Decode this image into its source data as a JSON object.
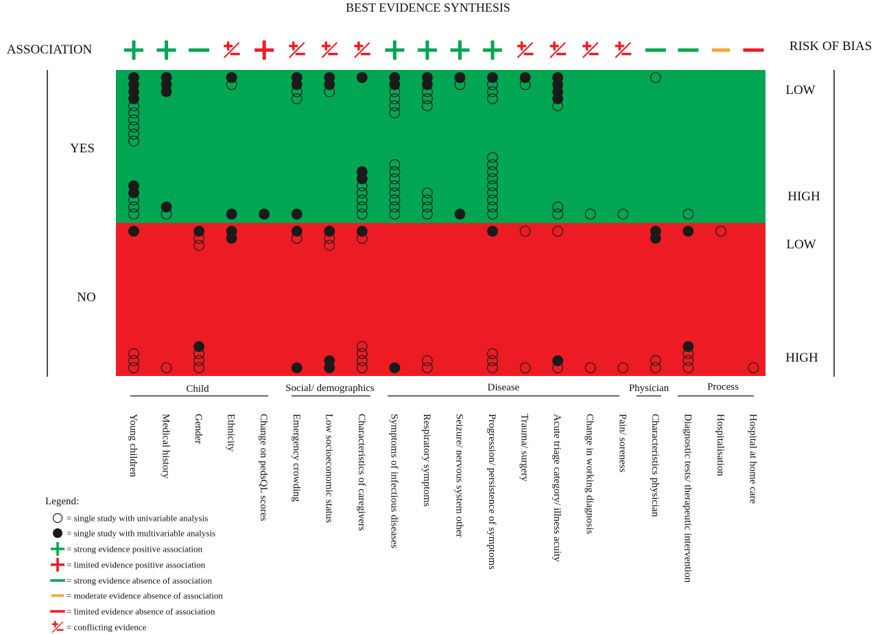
{
  "colors": {
    "green": "#00a651",
    "red": "#ed1c24",
    "orange": "#f7a535",
    "dot": "#1a1a1a"
  },
  "chart_data": {
    "type": "scatter",
    "title": "BEST EVIDENCE SYNTHESIS",
    "left_header": "ASSOCIATION",
    "right_header": "RISK OF BIAS",
    "association_labels": [
      "YES",
      "NO"
    ],
    "risk_labels": [
      "LOW",
      "HIGH",
      "LOW",
      "HIGH"
    ],
    "groups": [
      {
        "name": "Child",
        "from": 0,
        "to": 4
      },
      {
        "name": "Social/ demographics",
        "from": 5,
        "to": 7
      },
      {
        "name": "Disease",
        "from": 8,
        "to": 15
      },
      {
        "name": "Physician",
        "from": 16,
        "to": 16
      },
      {
        "name": "Process",
        "from": 17,
        "to": 19
      }
    ],
    "factors": [
      {
        "name": "Young children",
        "symbol": "strong-positive",
        "yes_low": "FFFFOOOOOO",
        "yes_high": "FFOOO",
        "no_low": "F",
        "no_high": "OOO"
      },
      {
        "name": "Medical history",
        "symbol": "strong-positive",
        "yes_low": "FFF",
        "yes_high": "FO",
        "no_low": "",
        "no_high": "O"
      },
      {
        "name": "Gender",
        "symbol": "strong-absence",
        "yes_low": "",
        "yes_high": "",
        "no_low": "FOO",
        "no_high": "FOOO"
      },
      {
        "name": "Ethnicity",
        "symbol": "conflicting",
        "yes_low": "FO",
        "yes_high": "F",
        "no_low": "FF",
        "no_high": ""
      },
      {
        "name": "Change on pedsQL scores",
        "symbol": "limited-positive",
        "yes_low": "",
        "yes_high": "F",
        "no_low": "",
        "no_high": ""
      },
      {
        "name": "Emergency crowding",
        "symbol": "conflicting",
        "yes_low": "FFOO",
        "yes_high": "F",
        "no_low": "FO",
        "no_high": "F"
      },
      {
        "name": "Low socioeconomic status",
        "symbol": "conflicting",
        "yes_low": "FFO",
        "yes_high": "",
        "no_low": "FOO",
        "no_high": "FF"
      },
      {
        "name": "Characteristics of caregivers",
        "symbol": "conflicting",
        "yes_low": "F",
        "yes_high": "FFOOOOO",
        "no_low": "FO",
        "no_high": "OOOO"
      },
      {
        "name": "Symptoms of infectious diseases",
        "symbol": "strong-positive",
        "yes_low": "FFOOOO",
        "yes_high": "OOOOOOOO",
        "no_low": "",
        "no_high": "F"
      },
      {
        "name": "Respiratory symptoms",
        "symbol": "strong-positive",
        "yes_low": "FFOOO",
        "yes_high": "OOOO",
        "no_low": "",
        "no_high": "OO"
      },
      {
        "name": "Seizure/ nervous system other",
        "symbol": "strong-positive",
        "yes_low": "FO",
        "yes_high": "F",
        "no_low": "",
        "no_high": ""
      },
      {
        "name": "Progression/ persistence of symptoms",
        "symbol": "strong-positive",
        "yes_low": "FOOO",
        "yes_high": "OOOOOOOOO",
        "no_low": "F",
        "no_high": "OOO"
      },
      {
        "name": "Trauma/ surgery",
        "symbol": "conflicting",
        "yes_low": "FO",
        "yes_high": "",
        "no_low": "O",
        "no_high": "O"
      },
      {
        "name": "Acute triage category/ illness acuity",
        "symbol": "conflicting",
        "yes_low": "FFFFO",
        "yes_high": "OO",
        "no_low": "O",
        "no_high": "FO"
      },
      {
        "name": "Change in working diagnosis",
        "symbol": "conflicting",
        "yes_low": "",
        "yes_high": "O",
        "no_low": "",
        "no_high": "O"
      },
      {
        "name": "Pain/ soreness",
        "symbol": "conflicting",
        "yes_low": "",
        "yes_high": "O",
        "no_low": "",
        "no_high": "O"
      },
      {
        "name": "Characteristics physician",
        "symbol": "strong-absence",
        "yes_low": "O",
        "yes_high": "",
        "no_low": "FF",
        "no_high": "OO"
      },
      {
        "name": "Diagnostic tests/ therapeutic intervention",
        "symbol": "strong-absence",
        "yes_low": "",
        "yes_high": "O",
        "no_low": "F",
        "no_high": "FOOO"
      },
      {
        "name": "Hospitalisation",
        "symbol": "moderate-absence",
        "yes_low": "",
        "yes_high": "",
        "no_low": "O",
        "no_high": ""
      },
      {
        "name": "Hospital at home care",
        "symbol": "limited-absence",
        "yes_low": "",
        "yes_high": "",
        "no_low": "",
        "no_high": "O"
      }
    ],
    "legend": {
      "title": "Legend:",
      "items": [
        {
          "symbol": "open-circle",
          "text": "= single study with univariable analysis"
        },
        {
          "symbol": "filled-circle",
          "text": "= single study with multivariable analysis"
        },
        {
          "symbol": "strong-positive",
          "text": "= strong evidence positive association"
        },
        {
          "symbol": "limited-positive",
          "text": "= limited evidence positive association"
        },
        {
          "symbol": "strong-absence",
          "text": "= strong evidence absence of association"
        },
        {
          "symbol": "moderate-absence",
          "text": "= moderate evidence absence of association"
        },
        {
          "symbol": "limited-absence",
          "text": "= limited evidence absence of association"
        },
        {
          "symbol": "conflicting",
          "text": "= conflicting evidence"
        }
      ]
    }
  }
}
